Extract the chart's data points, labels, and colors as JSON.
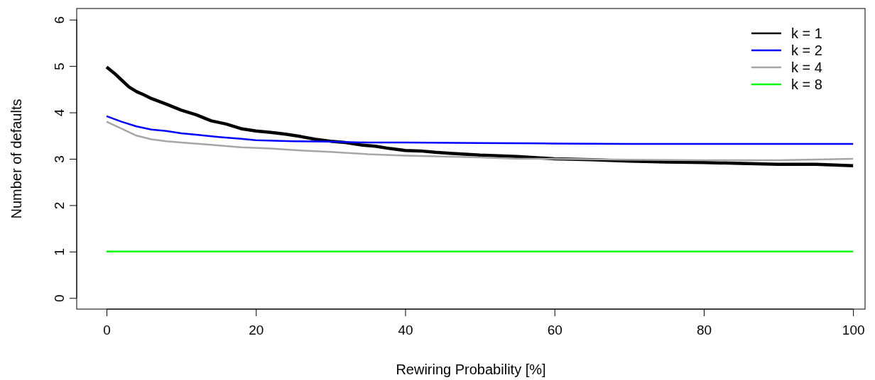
{
  "chart_data": {
    "type": "line",
    "xlabel": "Rewiring Probability [%]",
    "ylabel": "Number of defaults",
    "xlim": [
      -4,
      101.6
    ],
    "ylim": [
      -0.24,
      6.24
    ],
    "xticks": [
      0,
      20,
      40,
      60,
      80,
      100
    ],
    "yticks": [
      0,
      1,
      2,
      3,
      4,
      5,
      6
    ],
    "grid": false,
    "legend": "top right",
    "marker": "none",
    "line_style": "solid",
    "series": [
      {
        "name": "k = 1",
        "color": "#000000",
        "x": [
          0,
          1,
          2,
          3,
          4,
          5,
          6,
          8,
          10,
          12,
          14,
          16,
          18,
          20,
          22,
          24,
          26,
          28,
          30,
          32,
          34,
          36,
          38,
          40,
          42,
          44,
          46,
          48,
          50,
          55,
          60,
          65,
          70,
          75,
          80,
          85,
          90,
          95,
          100
        ],
        "values": [
          4.98,
          4.85,
          4.7,
          4.55,
          4.45,
          4.38,
          4.3,
          4.18,
          4.05,
          3.95,
          3.82,
          3.75,
          3.65,
          3.6,
          3.57,
          3.53,
          3.48,
          3.42,
          3.38,
          3.35,
          3.3,
          3.27,
          3.22,
          3.18,
          3.17,
          3.14,
          3.12,
          3.1,
          3.08,
          3.05,
          3.0,
          2.98,
          2.95,
          2.93,
          2.92,
          2.9,
          2.88,
          2.88,
          2.85
        ]
      },
      {
        "name": "k = 2",
        "color": "#0000ff",
        "x": [
          0,
          2,
          4,
          6,
          8,
          10,
          12,
          15,
          18,
          20,
          25,
          30,
          35,
          40,
          50,
          60,
          70,
          80,
          90,
          100
        ],
        "values": [
          3.92,
          3.8,
          3.7,
          3.63,
          3.6,
          3.55,
          3.52,
          3.47,
          3.43,
          3.4,
          3.38,
          3.37,
          3.35,
          3.35,
          3.34,
          3.33,
          3.32,
          3.32,
          3.32,
          3.32
        ]
      },
      {
        "name": "k = 4",
        "color": "#a6a6a6",
        "x": [
          0,
          2,
          4,
          6,
          8,
          10,
          14,
          18,
          22,
          26,
          30,
          35,
          40,
          45,
          50,
          55,
          60,
          70,
          80,
          90,
          100
        ],
        "values": [
          3.8,
          3.65,
          3.5,
          3.42,
          3.38,
          3.35,
          3.3,
          3.25,
          3.22,
          3.18,
          3.15,
          3.1,
          3.07,
          3.05,
          3.03,
          3.0,
          3.0,
          2.98,
          2.97,
          2.97,
          3.0
        ]
      },
      {
        "name": "k = 8",
        "color": "#00ff00",
        "x": [
          0,
          100
        ],
        "values": [
          1,
          1
        ]
      }
    ]
  }
}
